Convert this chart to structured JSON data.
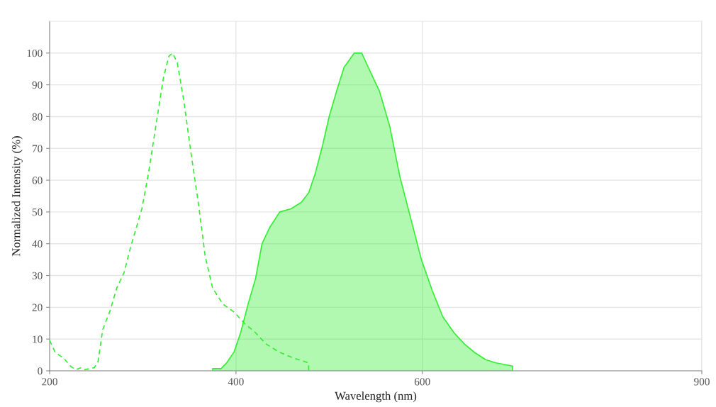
{
  "chart_data": {
    "type": "line",
    "xlabel": "Wavelength (nm)",
    "ylabel": "Normalized Intensity (%)",
    "xlim": [
      200,
      900
    ],
    "xticks": [
      200,
      400,
      600,
      900
    ],
    "ylim": [
      0,
      110
    ],
    "yticks": [
      0,
      10,
      20,
      30,
      40,
      50,
      60,
      70,
      80,
      90,
      100
    ],
    "grid": true,
    "marker": "none",
    "series": [
      {
        "line_style": "dashed",
        "color": "#33ee33",
        "x": [
          200,
          206,
          215,
          223,
          228,
          234,
          238,
          248,
          252,
          257,
          265,
          272,
          280,
          287,
          299,
          306,
          314,
          322,
          328,
          332,
          337,
          344,
          352,
          360,
          367,
          375,
          386,
          398,
          409,
          421,
          432,
          447,
          462,
          478,
          478
        ],
        "values": [
          9.6,
          5.8,
          4,
          1.3,
          0.4,
          1,
          0.4,
          1,
          3,
          13,
          19,
          26,
          31,
          39,
          51,
          62,
          77,
          92,
          99,
          100,
          97,
          85,
          68,
          52,
          36,
          26,
          21,
          18.5,
          15,
          12,
          8.5,
          5.8,
          4,
          2.5,
          0
        ]
      },
      {
        "type": "area",
        "line_style": "solid",
        "color": "#33ee33",
        "x": [
          375,
          375,
          384,
          390,
          398,
          405,
          413,
          421,
          428,
          436,
          447,
          459,
          470,
          478,
          485,
          493,
          500,
          508,
          516,
          527,
          535,
          542,
          554,
          565,
          576,
          588,
          599,
          611,
          622,
          634,
          645,
          656,
          668,
          679,
          697,
          697
        ],
        "values": [
          0,
          0.7,
          0.7,
          2.5,
          6,
          12,
          21,
          29,
          40,
          45,
          50,
          51,
          53,
          56,
          62,
          71,
          80,
          88,
          95.5,
          100,
          100,
          95.5,
          88,
          77,
          61,
          47.5,
          35,
          25,
          17,
          12,
          8.5,
          5.8,
          3.5,
          2.5,
          1.5,
          0
        ]
      }
    ]
  }
}
